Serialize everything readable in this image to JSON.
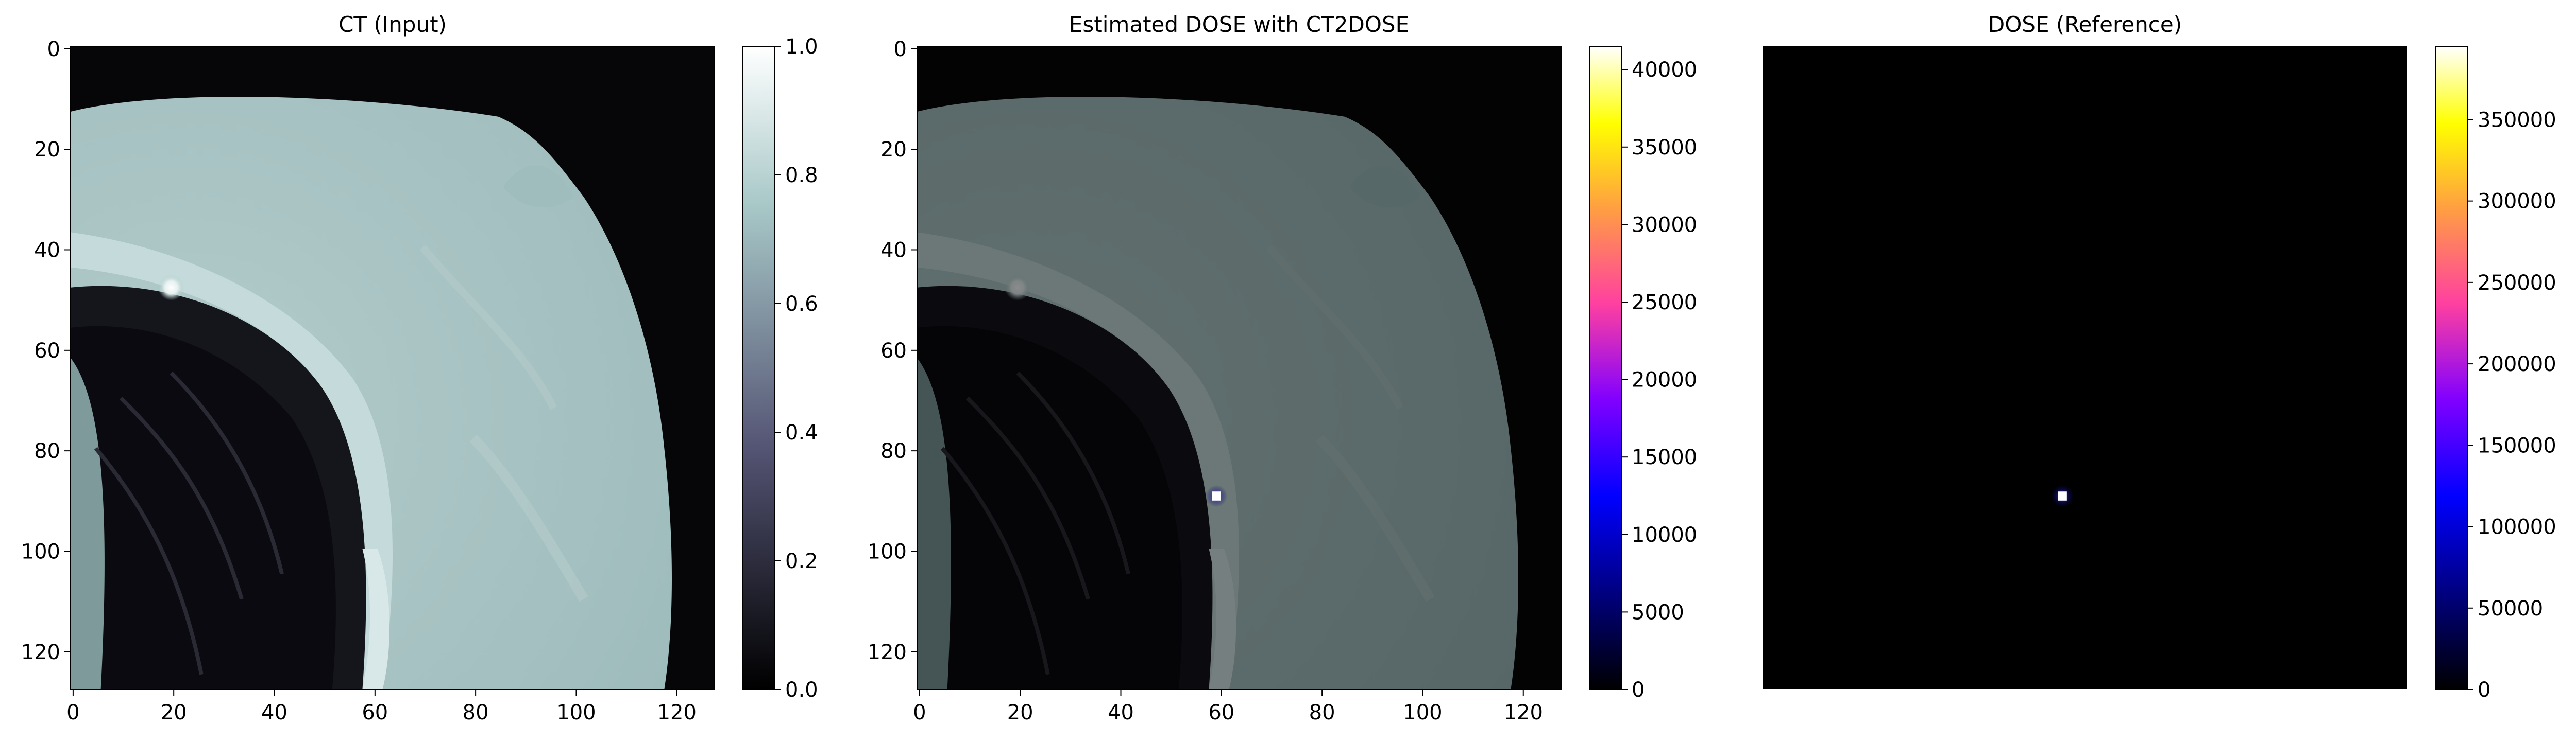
{
  "figure": {
    "panels": [
      {
        "title": "CT (Input)",
        "image": "grayscale CT slice showing ribs and lung boundary",
        "colormap": "bone",
        "x_ticks": [
          "0",
          "20",
          "40",
          "60",
          "80",
          "100",
          "120"
        ],
        "y_ticks": [
          "0",
          "20",
          "40",
          "60",
          "80",
          "100",
          "120"
        ],
        "colorbar_ticks": [
          "0.0",
          "0.2",
          "0.4",
          "0.6",
          "0.8",
          "1.0"
        ],
        "colorbar_range": [
          0,
          1
        ]
      },
      {
        "title": "Estimated DOSE with CT2DOSE",
        "image": "CT slice with estimated dose overlay; small bright spot near (59, 89)",
        "colormap": "gnuplot2",
        "x_ticks": [
          "0",
          "20",
          "40",
          "60",
          "80",
          "100",
          "120"
        ],
        "y_ticks": [
          "0",
          "20",
          "40",
          "60",
          "80",
          "100",
          "120"
        ],
        "colorbar_ticks": [
          "0",
          "5000",
          "10000",
          "15000",
          "20000",
          "25000",
          "30000",
          "35000",
          "40000"
        ],
        "colorbar_range": [
          0,
          41500
        ],
        "hotspot": {
          "x": 59,
          "y": 89
        }
      },
      {
        "title": "DOSE (Reference)",
        "image": "black background with a single bright dose spot near (59, 89)",
        "colormap": "gnuplot2",
        "colorbar_ticks": [
          "0",
          "50000",
          "100000",
          "150000",
          "200000",
          "250000",
          "300000",
          "350000"
        ],
        "colorbar_range": [
          0,
          395000
        ],
        "hotspot": {
          "x": 59,
          "y": 89
        }
      }
    ],
    "colors": {
      "bone_dark": "#000000",
      "bone_mid": "#545474",
      "bone_light": "#a7c7c7",
      "bone_white": "#ffffff",
      "dose_low": "#000000",
      "dose_blue": "#0000ff",
      "dose_purple": "#8000ff",
      "dose_pink": "#ff40a0",
      "dose_orange": "#ffa040",
      "dose_yellow": "#ffff00",
      "dose_white": "#ffffff"
    }
  }
}
